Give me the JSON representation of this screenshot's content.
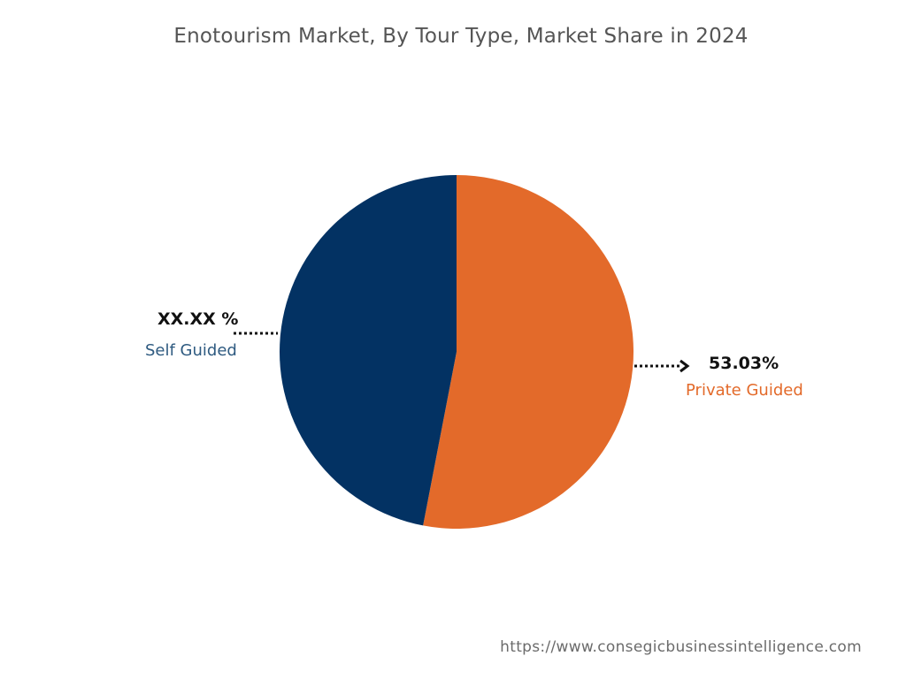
{
  "chart_data": {
    "type": "pie",
    "title": "Enotourism Market, By Tour Type, Market Share in 2024",
    "start_angle_deg": 0,
    "direction": "clockwise",
    "slices": [
      {
        "label": "Private Guided",
        "value": 53.03,
        "value_label": "53.03%",
        "color": "#E36A2A"
      },
      {
        "label": "Self Guided",
        "value": 46.97,
        "value_label": "XX.XX %",
        "color": "#033263"
      }
    ]
  },
  "footer": {
    "source_url": "https://www.consegicbusinessintelligence.com"
  },
  "colors": {
    "title": "#555555",
    "source": "#6b6b6b",
    "self_guided_label": "#2E5A80",
    "private_guided_label": "#E36A2A"
  }
}
